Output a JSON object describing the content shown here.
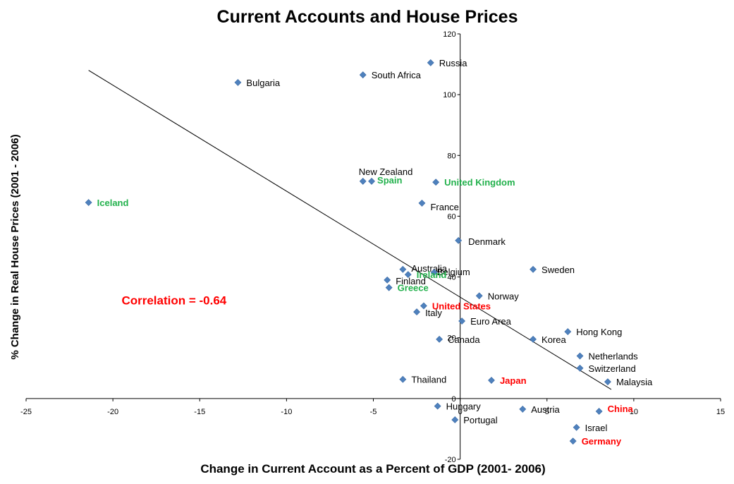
{
  "chart_data": {
    "type": "scatter",
    "title": "Current Accounts and House Prices",
    "xlabel": "Change in Current Account as a Percent of GDP (2001- 2006)",
    "ylabel": "% Change in Real House Prices (2001 - 2006)",
    "xlim": [
      -25,
      15
    ],
    "ylim": [
      -20,
      120
    ],
    "xticks": [
      -25,
      -20,
      -15,
      -10,
      -5,
      0,
      5,
      10,
      15
    ],
    "yticks": [
      -20,
      0,
      20,
      40,
      60,
      80,
      100,
      120
    ],
    "marker_color": "#4f81bd",
    "trendline": {
      "x": [
        -21.4,
        8.7
      ],
      "y": [
        108,
        3
      ]
    },
    "annotation": {
      "text": "Correlation = -0.64",
      "color": "#ff0000",
      "x": -19.5,
      "y": 31
    },
    "points": [
      {
        "name": "Russia",
        "x": -1.7,
        "y": 110.5,
        "color": "#000000",
        "highlight": false,
        "dx": 12,
        "dy": 0
      },
      {
        "name": "South Africa",
        "x": -5.6,
        "y": 106.5,
        "color": "#000000",
        "highlight": false,
        "dx": 12,
        "dy": 0
      },
      {
        "name": "Bulgaria",
        "x": -12.8,
        "y": 104,
        "color": "#000000",
        "highlight": false,
        "dx": 12,
        "dy": 0
      },
      {
        "name": "New Zealand",
        "x": -5.6,
        "y": 71.5,
        "color": "#000000",
        "highlight": false,
        "dx": -6,
        "dy": -14
      },
      {
        "name": "Spain",
        "x": -5.1,
        "y": 71.5,
        "color": "#22b14c",
        "highlight": true,
        "dx": 8,
        "dy": -2
      },
      {
        "name": "United Kingdom",
        "x": -1.4,
        "y": 71.2,
        "color": "#22b14c",
        "highlight": true,
        "dx": 12,
        "dy": 0
      },
      {
        "name": "Iceland",
        "x": -21.4,
        "y": 64.5,
        "color": "#22b14c",
        "highlight": true,
        "dx": 12,
        "dy": 0
      },
      {
        "name": "France",
        "x": -2.2,
        "y": 64.3,
        "color": "#000000",
        "highlight": false,
        "dx": 12,
        "dy": 5
      },
      {
        "name": "Denmark",
        "x": -0.1,
        "y": 52,
        "color": "#000000",
        "highlight": false,
        "dx": 14,
        "dy": 1
      },
      {
        "name": "Australia",
        "x": -3.3,
        "y": 42.5,
        "color": "#000000",
        "highlight": false,
        "dx": 12,
        "dy": -2
      },
      {
        "name": "Belgium",
        "x": -1.5,
        "y": 41.5,
        "color": "#000000",
        "highlight": false,
        "dx": 4,
        "dy": -1
      },
      {
        "name": "Ireland",
        "x": -3.0,
        "y": 40.8,
        "color": "#22b14c",
        "highlight": true,
        "dx": 12,
        "dy": 0
      },
      {
        "name": "Sweden",
        "x": 4.2,
        "y": 42.5,
        "color": "#000000",
        "highlight": false,
        "dx": 12,
        "dy": 0
      },
      {
        "name": "Finland",
        "x": -4.2,
        "y": 39,
        "color": "#000000",
        "highlight": false,
        "dx": 12,
        "dy": 1
      },
      {
        "name": "Greece",
        "x": -4.1,
        "y": 36.5,
        "color": "#22b14c",
        "highlight": true,
        "dx": 12,
        "dy": 0
      },
      {
        "name": "Norway",
        "x": 1.1,
        "y": 33.8,
        "color": "#000000",
        "highlight": false,
        "dx": 12,
        "dy": 0
      },
      {
        "name": "United States",
        "x": -2.1,
        "y": 30.5,
        "color": "#ff0000",
        "highlight": true,
        "dx": 12,
        "dy": 0
      },
      {
        "name": "Italy",
        "x": -2.5,
        "y": 28.5,
        "color": "#000000",
        "highlight": false,
        "dx": 12,
        "dy": 1
      },
      {
        "name": "Euro Area",
        "x": 0.1,
        "y": 25.5,
        "color": "#000000",
        "highlight": false,
        "dx": 12,
        "dy": 0
      },
      {
        "name": "Hong Kong",
        "x": 6.2,
        "y": 22,
        "color": "#000000",
        "highlight": false,
        "dx": 12,
        "dy": 0
      },
      {
        "name": "Canada",
        "x": -1.2,
        "y": 19.5,
        "color": "#000000",
        "highlight": false,
        "dx": 12,
        "dy": 0
      },
      {
        "name": "Korea",
        "x": 4.2,
        "y": 19.5,
        "color": "#000000",
        "highlight": false,
        "dx": 12,
        "dy": 0
      },
      {
        "name": "Netherlands",
        "x": 6.9,
        "y": 14,
        "color": "#000000",
        "highlight": false,
        "dx": 12,
        "dy": 0
      },
      {
        "name": "Switzerland",
        "x": 6.9,
        "y": 10,
        "color": "#000000",
        "highlight": false,
        "dx": 12,
        "dy": 0
      },
      {
        "name": "Thailand",
        "x": -3.3,
        "y": 6.3,
        "color": "#000000",
        "highlight": false,
        "dx": 12,
        "dy": 0
      },
      {
        "name": "Japan",
        "x": 1.8,
        "y": 6,
        "color": "#ff0000",
        "highlight": true,
        "dx": 12,
        "dy": 0
      },
      {
        "name": "Malaysia",
        "x": 8.5,
        "y": 5.5,
        "color": "#000000",
        "highlight": false,
        "dx": 12,
        "dy": 0
      },
      {
        "name": "Hungary",
        "x": -1.3,
        "y": -2.5,
        "color": "#000000",
        "highlight": false,
        "dx": 12,
        "dy": 0
      },
      {
        "name": "Austria",
        "x": 3.6,
        "y": -3.5,
        "color": "#000000",
        "highlight": false,
        "dx": 12,
        "dy": 0
      },
      {
        "name": "China",
        "x": 8.0,
        "y": -4.2,
        "color": "#ff0000",
        "highlight": true,
        "dx": 12,
        "dy": -4
      },
      {
        "name": "Portugal",
        "x": -0.3,
        "y": -7,
        "color": "#000000",
        "highlight": false,
        "dx": 12,
        "dy": 0
      },
      {
        "name": "Israel",
        "x": 6.7,
        "y": -9.5,
        "color": "#000000",
        "highlight": false,
        "dx": 12,
        "dy": 0
      },
      {
        "name": "Germany",
        "x": 6.5,
        "y": -14,
        "color": "#ff0000",
        "highlight": true,
        "dx": 12,
        "dy": 0
      }
    ]
  }
}
